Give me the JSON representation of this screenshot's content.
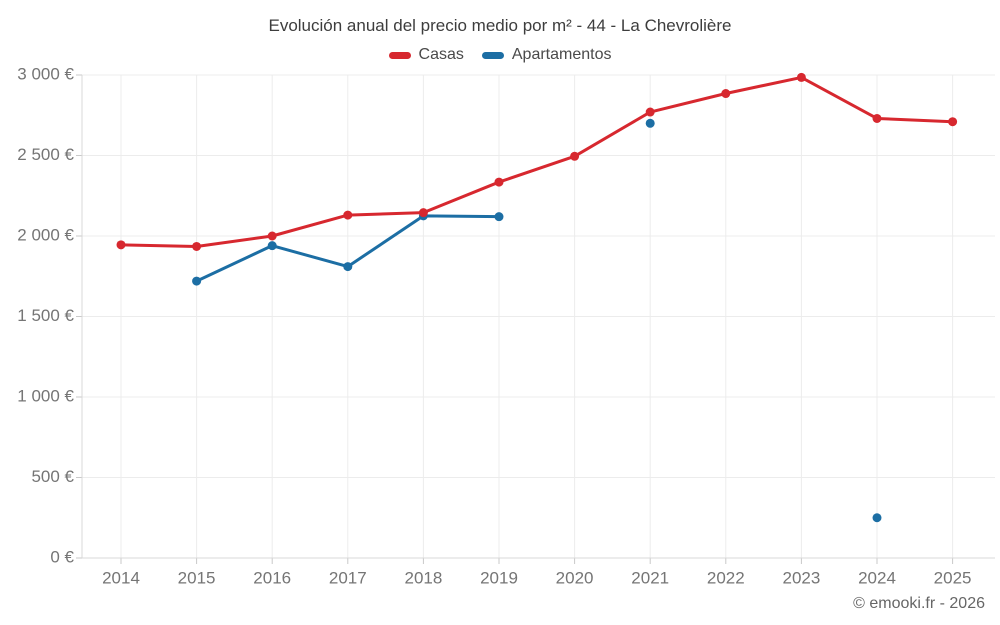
{
  "chart_data": {
    "type": "line",
    "title": "Evolución anual del precio medio por m² - 44 - La Chevrolière",
    "categories": [
      "2014",
      "2015",
      "2016",
      "2017",
      "2018",
      "2019",
      "2020",
      "2021",
      "2022",
      "2023",
      "2024",
      "2025"
    ],
    "series": [
      {
        "name": "Casas",
        "color": "#d7282f",
        "values": [
          1945,
          1935,
          2000,
          2130,
          2145,
          2335,
          2495,
          2770,
          2885,
          2985,
          2730,
          2710
        ]
      },
      {
        "name": "Apartamentos",
        "color": "#1c6ea4",
        "values": [
          null,
          1720,
          1940,
          1810,
          2125,
          2120,
          null,
          2700,
          null,
          null,
          250,
          null
        ]
      }
    ],
    "xlabel": "",
    "ylabel": "",
    "ylim": [
      0,
      3000
    ],
    "y_tick_step": 500,
    "y_tick_labels": [
      "0 €",
      "500 €",
      "1 000 €",
      "1 500 €",
      "2 000 €",
      "2 500 €",
      "3 000 €"
    ],
    "grid": true,
    "legend_position": "top",
    "axis_label_color": "#757575",
    "grid_color": "#ececec",
    "axis_line_color": "#d8d8d8",
    "tick_color": "#c9c9c9"
  },
  "footer": {
    "copyright": "© emooki.fr - 2026"
  }
}
